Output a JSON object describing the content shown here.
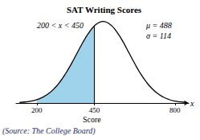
{
  "chart_data": {
    "type": "line",
    "title": "SAT Writing Scores",
    "xlabel": "Score",
    "axis_variable": "x",
    "annotations": [
      "200 < x < 450",
      "μ = 488",
      "σ = 114"
    ],
    "source": "(Source: The College Board)",
    "x": [
      125,
      150,
      175,
      200,
      225,
      250,
      275,
      300,
      325,
      350,
      375,
      400,
      425,
      450,
      475,
      488,
      500,
      525,
      550,
      575,
      600,
      625,
      650,
      675,
      700,
      725,
      750,
      775,
      800,
      825,
      850
    ],
    "values": [
      2.2e-05,
      4.32e-05,
      8.07e-05,
      0.000144,
      0.000245,
      0.000396,
      0.000611,
      0.000898,
      0.00126,
      0.00168,
      0.00214,
      0.0026,
      0.003,
      0.00331,
      0.00348,
      0.0035,
      0.00348,
      0.00332,
      0.00302,
      0.00262,
      0.00216,
      0.0017,
      0.00127,
      0.000912,
      0.000621,
      0.000403,
      0.00025,
      0.000147,
      8.27e-05,
      4.43e-05,
      2.26e-05
    ],
    "shaded_range": [
      200,
      450
    ],
    "color": "#000000",
    "fill_color": "#9fd3ec",
    "xlim": [
      110,
      860
    ],
    "xticks": [
      200,
      450,
      800
    ],
    "ylim": [
      0,
      0.0038
    ],
    "grid": false,
    "tick_labels": "x"
  }
}
